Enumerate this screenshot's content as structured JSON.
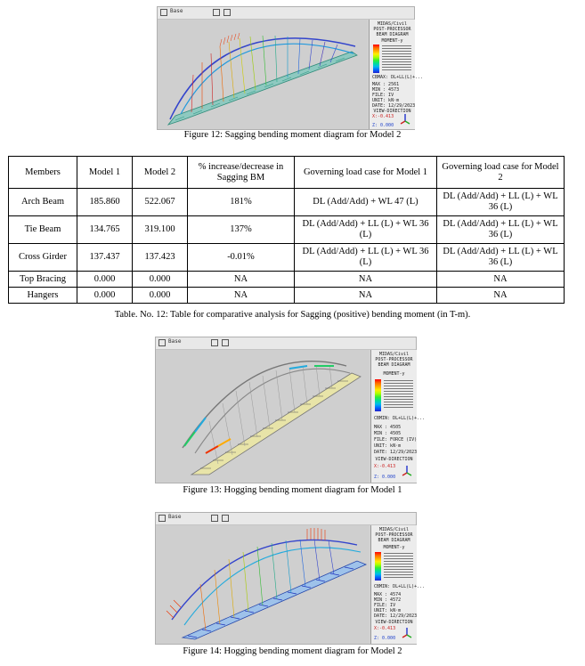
{
  "figures": [
    {
      "caption": "Figure 12: Sagging bending moment diagram for Model 2",
      "toolbar_text": "Base",
      "panel": {
        "header": [
          "MIDAS/Civil",
          "POST-PROCESSOR",
          "BEAM DIAGRAM"
        ],
        "title": "MOMENT-y",
        "info": [
          "CBMAX: DL+LL(L)+...",
          "MAX : 2561",
          "MIN : 4573",
          "FILE: IV",
          "UNIT: kN·m",
          "DATE: 12/29/2023"
        ],
        "view": "VIEW-DIRECTION",
        "small_a": "X:-0.413",
        "small_b": "Z: 0.000"
      }
    },
    {
      "caption": "Figure 13: Hogging bending moment diagram for Model 1",
      "toolbar_text": "Base",
      "panel": {
        "header": [
          "MIDAS/Civil",
          "POST-PROCESSOR",
          "BEAM DIAGRAM"
        ],
        "title": "MOMENT-y",
        "info": [
          "CBMIN: DL+LL(L)+...",
          "MAX : 4505",
          "MIN : 4505",
          "FILE: FORCE (IV)",
          "UNIT: kN·m",
          "DATE: 12/29/2023"
        ],
        "view": "VIEW-DIRECTION",
        "small_a": "X:-0.413",
        "small_b": "Z: 0.000"
      }
    },
    {
      "caption": "Figure 14: Hogging bending moment diagram for Model 2",
      "toolbar_text": "Base",
      "panel": {
        "header": [
          "MIDAS/Civil",
          "POST-PROCESSOR",
          "BEAM DIAGRAM"
        ],
        "title": "MOMENT-y",
        "info": [
          "CBMIN: DL+LL(L)+...",
          "MAX : 4574",
          "MIN : 4572",
          "FILE: IV",
          "UNIT: kN·m",
          "DATE: 12/29/2023"
        ],
        "view": "VIEW-DIRECTION",
        "small_a": "X:-0.413",
        "small_b": "Z: 0.000"
      }
    }
  ],
  "table": {
    "headers": [
      "Members",
      "Model 1",
      "Model 2",
      "% increase/decrease in Sagging BM",
      "Governing load case for Model 1",
      "Governing load case for Model 2"
    ],
    "rows": [
      [
        "Arch Beam",
        "185.860",
        "522.067",
        "181%",
        "DL (Add/Add) + WL 47 (L)",
        "DL (Add/Add) + LL (L) + WL 36 (L)"
      ],
      [
        "Tie Beam",
        "134.765",
        "319.100",
        "137%",
        "DL (Add/Add) + LL (L) + WL 36 (L)",
        "DL (Add/Add) + LL (L) + WL 36 (L)"
      ],
      [
        "Cross Girder",
        "137.437",
        "137.423",
        "-0.01%",
        "DL (Add/Add) + LL (L) + WL 36 (L)",
        "DL (Add/Add) + LL (L) + WL 36 (L)"
      ],
      [
        "Top Bracing",
        "0.000",
        "0.000",
        "NA",
        "NA",
        "NA"
      ],
      [
        "Hangers",
        "0.000",
        "0.000",
        "NA",
        "NA",
        "NA"
      ]
    ],
    "caption": "Table. No. 12: Table for comparative analysis for Sagging (positive) bending moment (in T-m)."
  },
  "legend_colors": [
    "#ff0000",
    "#ff6600",
    "#ffaa00",
    "#ffee00",
    "#aaff00",
    "#33ee33",
    "#00dd99",
    "#00bbee",
    "#0066ff",
    "#2222cc"
  ]
}
